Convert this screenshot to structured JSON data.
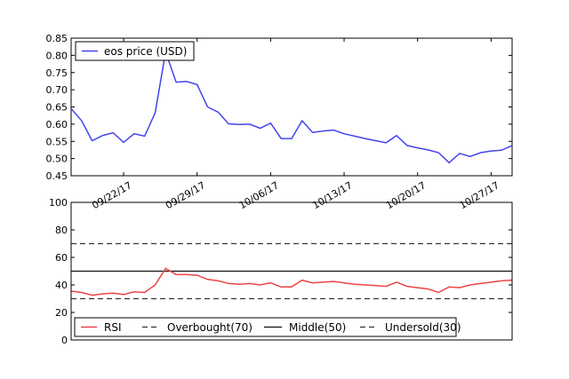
{
  "chart_data": [
    {
      "type": "line",
      "title": "",
      "xlabel": "",
      "ylabel": "",
      "x": [
        "09/17/17",
        "09/18/17",
        "09/19/17",
        "09/20/17",
        "09/21/17",
        "09/22/17",
        "09/23/17",
        "09/24/17",
        "09/25/17",
        "09/26/17",
        "09/27/17",
        "09/28/17",
        "09/29/17",
        "09/30/17",
        "10/01/17",
        "10/02/17",
        "10/03/17",
        "10/04/17",
        "10/05/17",
        "10/06/17",
        "10/07/17",
        "10/08/17",
        "10/09/17",
        "10/10/17",
        "10/11/17",
        "10/12/17",
        "10/13/17",
        "10/14/17",
        "10/15/17",
        "10/16/17",
        "10/17/17",
        "10/18/17",
        "10/19/17",
        "10/20/17",
        "10/21/17",
        "10/22/17",
        "10/23/17",
        "10/24/17",
        "10/25/17",
        "10/26/17",
        "10/27/17",
        "10/28/17",
        "10/29/17"
      ],
      "x_tick_labels": [
        "09/22/17",
        "09/29/17",
        "10/06/17",
        "10/13/17",
        "10/20/17",
        "10/27/17"
      ],
      "y_tick_labels": [
        "0.45",
        "0.50",
        "0.55",
        "0.60",
        "0.65",
        "0.70",
        "0.75",
        "0.80",
        "0.85"
      ],
      "ylim": [
        0.45,
        0.85
      ],
      "legend_position": "top-left",
      "series": [
        {
          "name": "eos price (USD)",
          "color": "#4444ee",
          "values": [
            0.645,
            0.61,
            0.552,
            0.567,
            0.575,
            0.547,
            0.572,
            0.565,
            0.633,
            0.81,
            0.722,
            0.724,
            0.715,
            0.65,
            0.635,
            0.601,
            0.599,
            0.6,
            0.588,
            0.603,
            0.558,
            0.558,
            0.61,
            0.576,
            0.58,
            0.583,
            0.572,
            0.565,
            0.558,
            0.552,
            0.546,
            0.567,
            0.538,
            0.531,
            0.525,
            0.517,
            0.488,
            0.515,
            0.506,
            0.517,
            0.522,
            0.524,
            0.538
          ]
        }
      ]
    },
    {
      "type": "line",
      "title": "",
      "xlabel": "",
      "ylabel": "",
      "y_tick_labels": [
        "0",
        "20",
        "40",
        "60",
        "80",
        "100"
      ],
      "ylim": [
        0,
        100
      ],
      "legend_position": "bottom-left",
      "series": [
        {
          "name": "RSI",
          "color": "#ee4444",
          "values": [
            35.5,
            34.5,
            32.5,
            33.5,
            34,
            33,
            35,
            34.5,
            40,
            52,
            47.5,
            47.5,
            47,
            44,
            43,
            41,
            40.5,
            41,
            40,
            41.5,
            38.5,
            38.5,
            43.5,
            41.5,
            42,
            42.5,
            41.5,
            40.5,
            40,
            39.5,
            39,
            42,
            39,
            38,
            37,
            34.5,
            38.5,
            38,
            40,
            41,
            42,
            43,
            43.5
          ]
        },
        {
          "name": "Overbought(70)",
          "color": "#333333",
          "style": "dashed",
          "value": 70
        },
        {
          "name": "Middle(50)",
          "color": "#111111",
          "style": "solid",
          "value": 50
        },
        {
          "name": "Undersold(30)",
          "color": "#333333",
          "style": "dashed",
          "value": 30
        }
      ]
    }
  ]
}
